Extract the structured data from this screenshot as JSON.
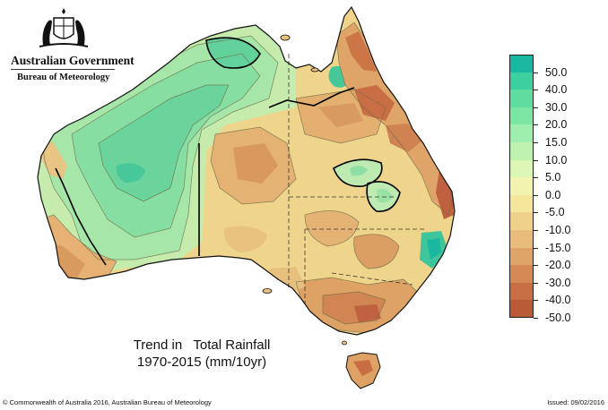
{
  "branding": {
    "government": "Australian Government",
    "bureau": "Bureau of Meteorology",
    "crest_icon": "coat-of-arms-icon"
  },
  "map_title": {
    "line1": "Trend in   Total Rainfall",
    "line2": "1970-2015 (mm/10yr)"
  },
  "legend": {
    "items": [
      {
        "label": "50.0",
        "color": "#1ab8a0"
      },
      {
        "label": "40.0",
        "color": "#3ecfa0"
      },
      {
        "label": "30.0",
        "color": "#5fdc9f"
      },
      {
        "label": "20.0",
        "color": "#7ee6a4"
      },
      {
        "label": "15.0",
        "color": "#9eeeae"
      },
      {
        "label": "10.0",
        "color": "#bff2b0"
      },
      {
        "label": "5.0",
        "color": "#dcf7b5"
      },
      {
        "label": "0.0",
        "color": "#f2f3ae"
      },
      {
        "label": "-5.0",
        "color": "#f4e79c"
      },
      {
        "label": "-10.0",
        "color": "#efd18a"
      },
      {
        "label": "-15.0",
        "color": "#e8bc7b"
      },
      {
        "label": "-20.0",
        "color": "#dfa468"
      },
      {
        "label": "-30.0",
        "color": "#d58a55"
      },
      {
        "label": "-40.0",
        "color": "#c86e44"
      },
      {
        "label": "-50.0",
        "color": "#b85a36"
      }
    ]
  },
  "footer": {
    "copyright": "© Commonwealth of Australia 2016, Australian Bureau of Meteorology",
    "issued": "Issued: 09/02/2016"
  }
}
